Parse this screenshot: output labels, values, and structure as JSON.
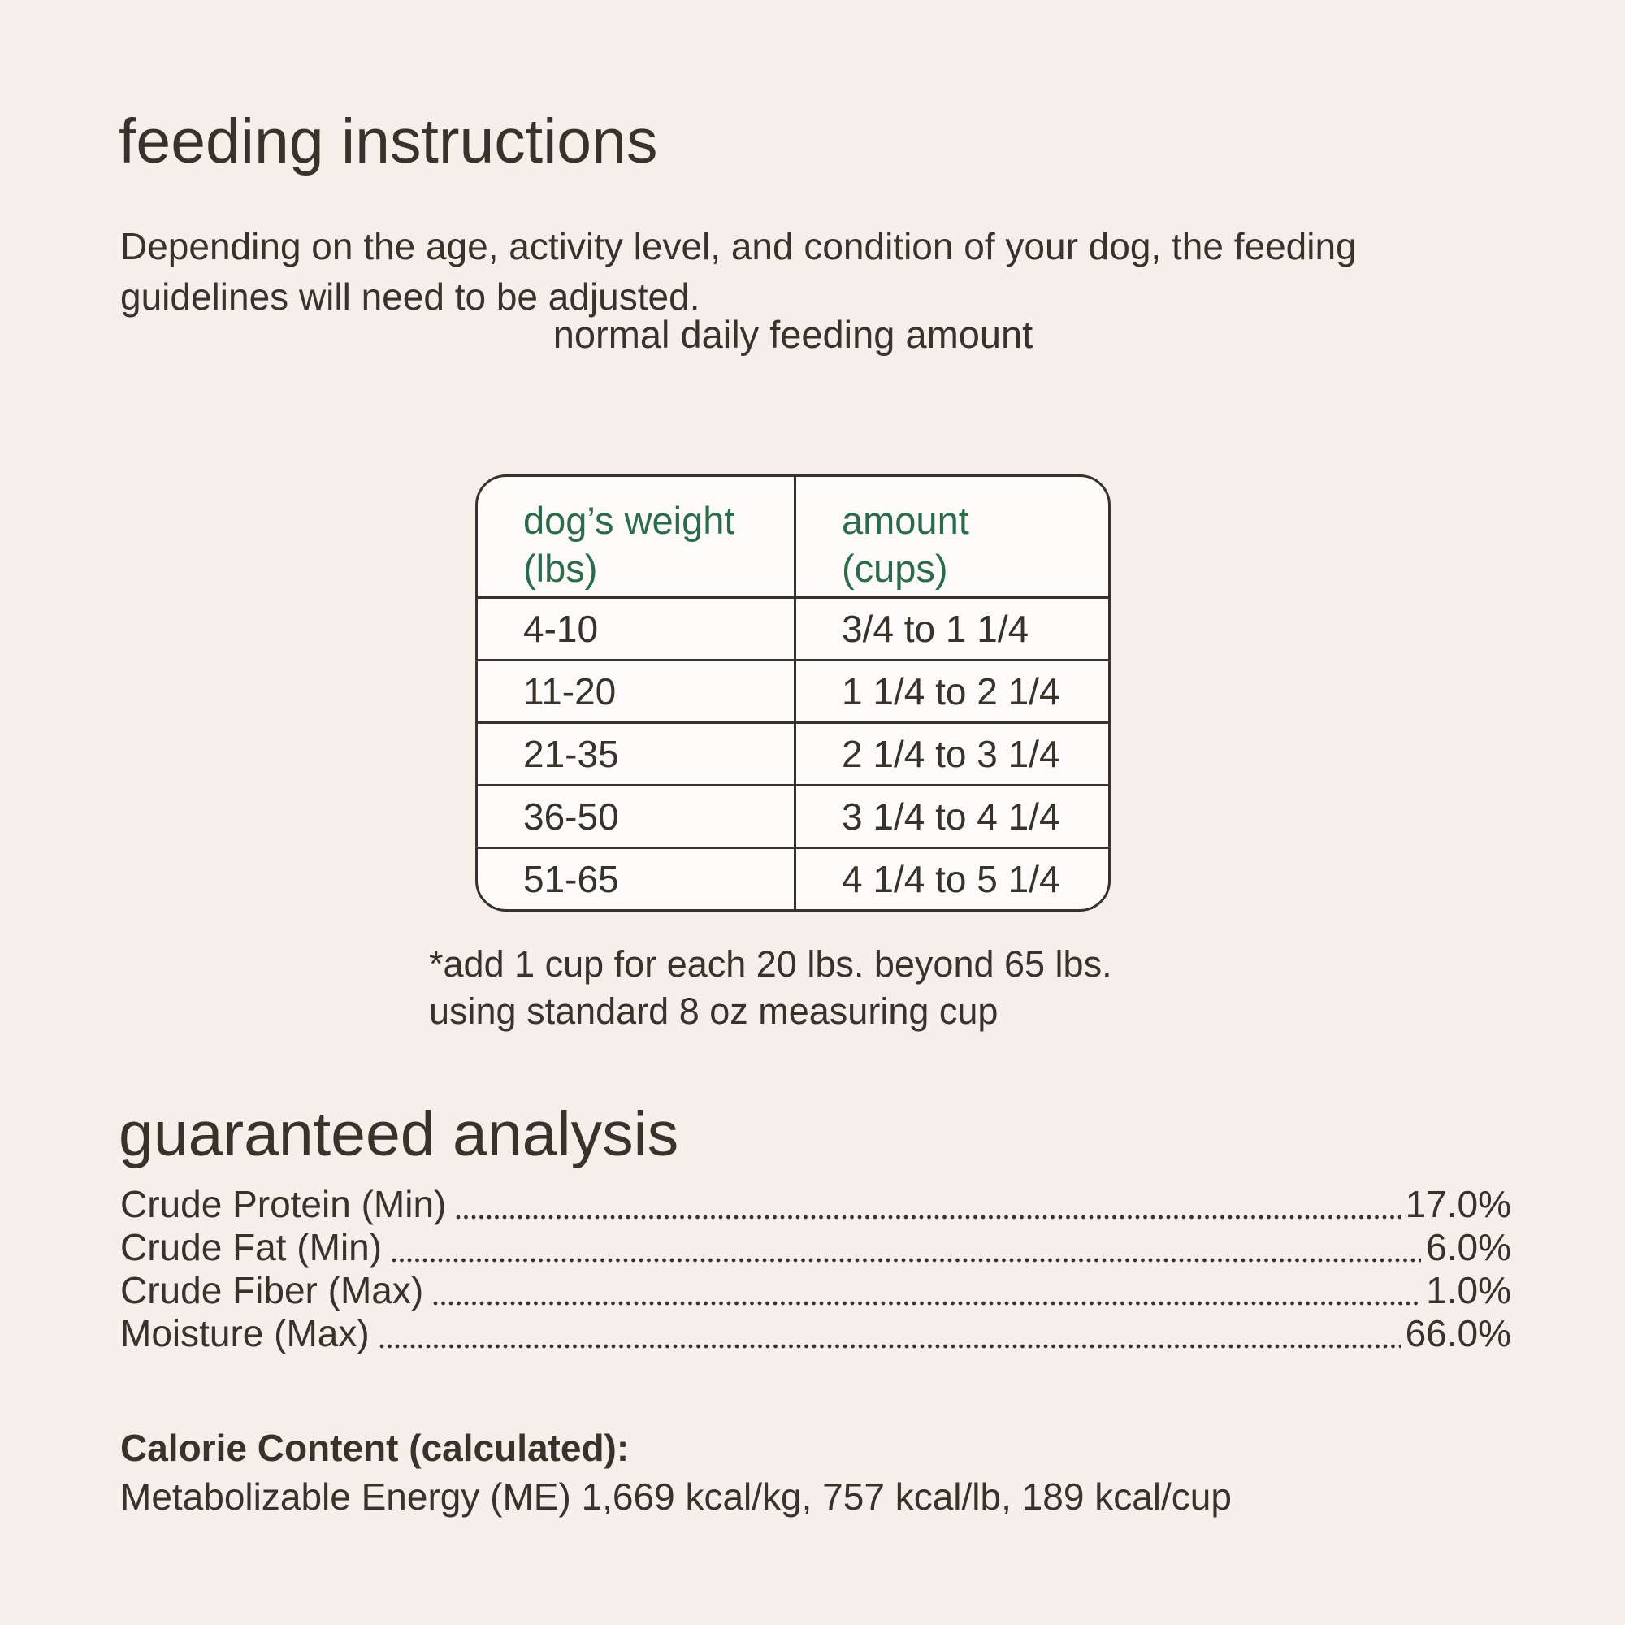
{
  "colors": {
    "background": "#f4efe9",
    "text": "#38322b",
    "table_header_green": "#2d6a4a",
    "table_background": "#fcfbf9"
  },
  "feeding": {
    "title": "feeding instructions",
    "description_lines": [
      "Depending on the age, activity level, and condition of your dog, the feeding",
      "guidelines will need to be adjusted."
    ],
    "table_title": "normal daily feeding amount",
    "table": {
      "col1_header_line1": "dog’s weight",
      "col1_header_line2": "(lbs)",
      "col2_header_line1": "amount",
      "col2_header_line2": "(cups)",
      "rows": [
        {
          "weight": "4-10",
          "amount": "3/4 to 1 1/4"
        },
        {
          "weight": "11-20",
          "amount": "1 1/4 to 2 1/4"
        },
        {
          "weight": "21-35",
          "amount": "2 1/4 to 3 1/4"
        },
        {
          "weight": "36-50",
          "amount": "3 1/4 to 4 1/4"
        },
        {
          "weight": "51-65",
          "amount": "4 1/4 to 5 1/4"
        }
      ]
    },
    "footnote_lines": [
      "*add 1 cup for each 20 lbs. beyond 65 lbs.",
      "using standard 8 oz measuring cup"
    ]
  },
  "guaranteed_analysis": {
    "title": "guaranteed analysis",
    "items": [
      {
        "label": "Crude Protein (Min)",
        "value": "17.0%"
      },
      {
        "label": "Crude Fat (Min)",
        "value": "6.0%"
      },
      {
        "label": "Crude Fiber (Max)",
        "value": "1.0%"
      },
      {
        "label": "Moisture (Max)",
        "value": "66.0%"
      }
    ],
    "calorie_heading": "Calorie Content (calculated):",
    "calorie_detail": "Metabolizable Energy (ME) 1,669 kcal/kg, 757 kcal/lb, 189 kcal/cup"
  }
}
